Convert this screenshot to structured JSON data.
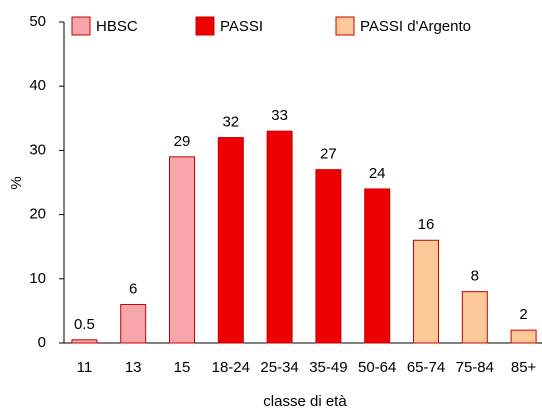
{
  "chart_data": {
    "type": "bar",
    "x_label": "classe di età",
    "y_label": "%",
    "categories": [
      "11",
      "13",
      "15",
      "18-24",
      "25-34",
      "35-49",
      "50-64",
      "65-74",
      "75-84",
      "85+"
    ],
    "series": [
      {
        "name": "HBSC",
        "color": "#f7a6ab",
        "values": [
          0.5,
          6,
          29,
          null,
          null,
          null,
          null,
          null,
          null,
          null
        ]
      },
      {
        "name": "PASSI",
        "color": "#ee0000",
        "values": [
          null,
          null,
          null,
          32,
          33,
          27,
          24,
          null,
          null,
          null
        ]
      },
      {
        "name": "PASSI d'Argento",
        "color": "#fbc898",
        "values": [
          null,
          null,
          null,
          null,
          null,
          null,
          null,
          16,
          8,
          2
        ]
      }
    ],
    "ylim": [
      0,
      50
    ],
    "yticks": [
      0,
      10,
      20,
      30,
      40,
      50
    ],
    "grid": false,
    "legend": "top"
  }
}
